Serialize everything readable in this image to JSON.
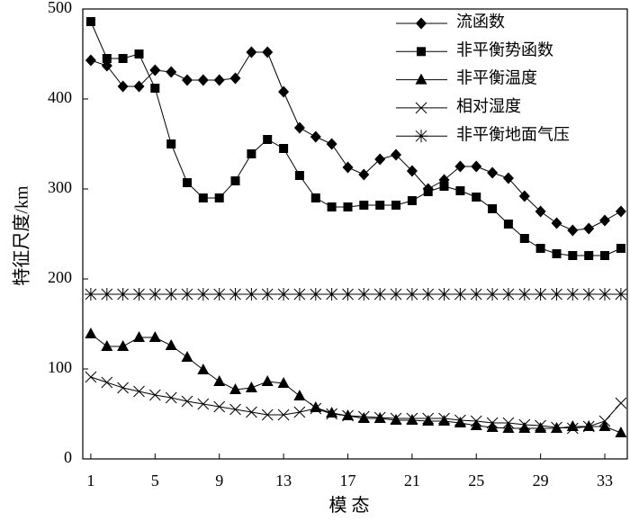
{
  "chart_data": {
    "type": "line",
    "xlabel": "模  态",
    "ylabel": "特征尺度/km",
    "x": [
      1,
      2,
      3,
      4,
      5,
      6,
      7,
      8,
      9,
      10,
      11,
      12,
      13,
      14,
      15,
      16,
      17,
      18,
      19,
      20,
      21,
      22,
      23,
      24,
      25,
      26,
      27,
      28,
      29,
      30,
      31,
      32,
      33,
      34
    ],
    "xticks": [
      1,
      5,
      9,
      13,
      17,
      21,
      25,
      29,
      33
    ],
    "yticks": [
      0,
      100,
      200,
      300,
      400,
      500
    ],
    "xlim": [
      0.5,
      34.4
    ],
    "ylim": [
      0,
      500
    ],
    "grid": false,
    "legend": "top-right",
    "series": [
      {
        "name": "流函数",
        "marker": "diamond",
        "color": "#000000",
        "values": [
          443,
          437,
          414,
          414,
          432,
          430,
          421,
          421,
          421,
          423,
          452,
          452,
          408,
          368,
          358,
          350,
          324,
          316,
          333,
          338,
          320,
          300,
          310,
          325,
          325,
          318,
          312,
          292,
          275,
          262,
          254,
          256,
          265,
          275
        ]
      },
      {
        "name": "非平衡势函数",
        "marker": "square",
        "color": "#000000",
        "values": [
          486,
          445,
          445,
          450,
          412,
          350,
          307,
          290,
          290,
          309,
          339,
          355,
          345,
          315,
          290,
          280,
          280,
          282,
          282,
          282,
          287,
          297,
          303,
          298,
          291,
          278,
          261,
          245,
          234,
          228,
          226,
          226,
          226,
          234
        ]
      },
      {
        "name": "非平衡温度",
        "marker": "triangle",
        "color": "#000000",
        "values": [
          139,
          125,
          125,
          135,
          135,
          126,
          113,
          99,
          86,
          77,
          79,
          86,
          84,
          70,
          57,
          51,
          48,
          45,
          45,
          43,
          43,
          42,
          42,
          40,
          37,
          35,
          34,
          34,
          34,
          34,
          36,
          36,
          36,
          29
        ]
      },
      {
        "name": "相对湿度",
        "marker": "x",
        "color": "#000000",
        "values": [
          91,
          85,
          79,
          75,
          71,
          68,
          64,
          61,
          58,
          55,
          52,
          49,
          49,
          52,
          56,
          50,
          48,
          47,
          46,
          45,
          45,
          45,
          45,
          43,
          42,
          40,
          40,
          38,
          37,
          35,
          34,
          36,
          42,
          62
        ]
      },
      {
        "name": "非平衡地面气压",
        "marker": "asterisk",
        "color": "#000000",
        "values": [
          183,
          183,
          183,
          183,
          183,
          183,
          183,
          183,
          183,
          183,
          183,
          183,
          183,
          183,
          183,
          183,
          183,
          183,
          183,
          183,
          183,
          183,
          183,
          183,
          183,
          183,
          183,
          183,
          183,
          183,
          183,
          183,
          183,
          183
        ]
      }
    ]
  }
}
